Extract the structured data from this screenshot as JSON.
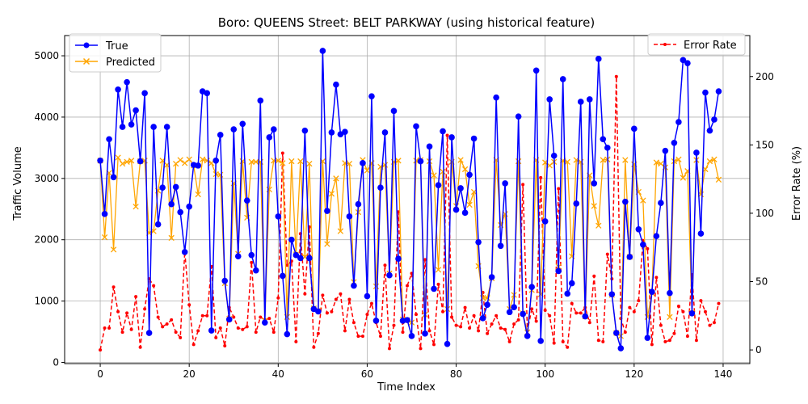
{
  "chart_data": {
    "type": "line",
    "title": "Boro: QUEENS Street: BELT PARKWAY (using historical feature)",
    "xlabel": "Time Index",
    "ylabel": "Traffic Volume",
    "ylabel_right": "Error Rate (%)",
    "xlim": [
      -8,
      146
    ],
    "ylim": [
      -20,
      5330
    ],
    "ylim_right": [
      -10,
      230
    ],
    "x_ticks": [
      0,
      20,
      40,
      60,
      80,
      100,
      120,
      140
    ],
    "y_ticks": [
      0,
      1000,
      2000,
      3000,
      4000,
      5000
    ],
    "y_right_ticks": [
      0,
      50,
      100,
      150,
      200
    ],
    "grid": true,
    "legend_left_placement": "upper-left",
    "legend_right_placement": "upper-right",
    "series": [
      {
        "name": "True",
        "axis": "left",
        "color": "#0000ff",
        "marker": "circle",
        "values": [
          3290,
          2420,
          3640,
          3020,
          4450,
          3840,
          4570,
          3880,
          4110,
          3280,
          4390,
          480,
          3840,
          2250,
          2850,
          3840,
          2580,
          2860,
          2450,
          1800,
          2540,
          3220,
          3210,
          4420,
          4390,
          520,
          3290,
          3710,
          1330,
          700,
          3800,
          1730,
          3890,
          2640,
          1750,
          1500,
          4270,
          650,
          3670,
          3800,
          2380,
          1410,
          460,
          2000,
          1750,
          1700,
          3780,
          1700,
          870,
          830,
          5080,
          2470,
          3750,
          4530,
          3720,
          3760,
          2380,
          1250,
          2580,
          3250,
          1080,
          4340,
          680,
          2850,
          3750,
          1420,
          4100,
          1690,
          680,
          690,
          430,
          3850,
          3280,
          470,
          3520,
          1200,
          2890,
          3770,
          300,
          3670,
          2490,
          2840,
          2440,
          3060,
          3650,
          1960,
          720,
          940,
          1390,
          4320,
          1900,
          2920,
          820,
          900,
          4010,
          790,
          430,
          1230,
          4760,
          350,
          2300,
          4290,
          3370,
          1490,
          4620,
          1120,
          1290,
          2590,
          4250,
          750,
          4290,
          2920,
          4950,
          3640,
          3500,
          1110,
          480,
          230,
          2620,
          1720,
          3810,
          2170,
          1920,
          400,
          1150,
          2060,
          2600,
          3450,
          1130,
          3580,
          3920,
          4930,
          4880,
          800,
          3420,
          2100,
          4400,
          3780,
          3960,
          4420
        ],
        "predicted_values": [
          3290,
          2040,
          3090,
          1840,
          3340,
          3240,
          3270,
          3290,
          2540,
          3280,
          3290,
          2110,
          2140,
          2800,
          3290,
          3220,
          2030,
          3240,
          3300,
          3250,
          3310,
          3210,
          2740,
          3310,
          3290,
          3250,
          3070,
          3060,
          1290,
          710,
          2920,
          1770,
          3280,
          2360,
          3270,
          3270,
          3270,
          680,
          2820,
          3290,
          3290,
          3250,
          740,
          3280,
          1760,
          3280,
          1720,
          3240,
          880,
          850,
          3280,
          1930,
          2750,
          3000,
          2140,
          3250,
          3240,
          1310,
          2450,
          3300,
          3130,
          3250,
          1240,
          3190,
          3220,
          1450,
          3270,
          3290,
          700,
          690,
          650,
          3290,
          3300,
          780,
          3280,
          3050,
          1510,
          3110,
          870,
          3270,
          2550,
          3300,
          3150,
          2570,
          2780,
          1570,
          1050,
          1050,
          1370,
          3300,
          2240,
          2420,
          870,
          1100,
          3280,
          800,
          490,
          1180,
          3300,
          1110,
          3260,
          3210,
          3270,
          1560,
          3290,
          3270,
          1730,
          3300,
          3270,
          750,
          3050,
          2550,
          2230,
          3300,
          3310,
          1100,
          480,
          430,
          3300,
          1720,
          3230,
          2780,
          2640,
          740,
          1130,
          3260,
          3240,
          3180,
          740,
          3280,
          3310,
          3010,
          3120,
          810,
          3300,
          2740,
          3150,
          3280,
          3310,
          2980
        ]
      },
      {
        "name": "Error Rate",
        "axis": "right",
        "color": "#ff0000",
        "marker": "dot",
        "values": [
          0,
          16,
          16,
          46,
          28,
          13,
          27,
          15,
          39,
          2,
          30,
          52,
          47,
          24,
          17,
          19,
          22,
          13,
          9,
          72,
          33,
          4,
          14,
          25,
          25,
          61,
          9,
          16,
          3,
          31,
          24,
          16,
          15,
          17,
          64,
          13,
          24,
          22,
          23,
          13,
          38,
          144,
          62,
          65,
          6,
          85,
          41,
          90,
          2,
          12,
          40,
          27,
          28,
          37,
          41,
          14,
          37,
          20,
          10,
          10,
          26,
          34,
          20,
          10,
          62,
          1,
          18,
          101,
          13,
          47,
          56,
          26,
          1,
          66,
          14,
          4,
          48,
          28,
          157,
          24,
          18,
          17,
          31,
          16,
          25,
          14,
          42,
          12,
          19,
          25,
          16,
          15,
          6,
          19,
          22,
          121,
          14,
          30,
          21,
          126,
          29,
          25,
          5,
          118,
          6,
          2,
          34,
          27,
          27,
          31,
          20,
          54,
          7,
          6,
          70,
          52,
          200,
          23,
          13,
          31,
          28,
          36,
          80,
          74,
          4,
          53,
          18,
          6,
          7,
          12,
          32,
          28,
          10,
          55,
          7,
          36,
          28,
          18,
          20,
          34
        ]
      }
    ]
  }
}
